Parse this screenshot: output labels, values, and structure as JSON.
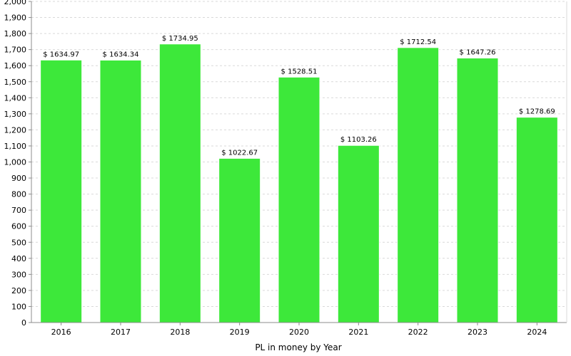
{
  "chart_data": {
    "type": "bar",
    "title": "",
    "xlabel": "PL in money by Year",
    "ylabel": "",
    "categories": [
      "2016",
      "2017",
      "2018",
      "2019",
      "2020",
      "2021",
      "2022",
      "2023",
      "2024"
    ],
    "values": [
      1634.97,
      1634.34,
      1734.95,
      1022.67,
      1528.51,
      1103.26,
      1712.54,
      1647.26,
      1278.69
    ],
    "data_labels": [
      "$ 1634.97",
      "$ 1634.34",
      "$ 1734.95",
      "$ 1022.67",
      "$ 1528.51",
      "$ 1103.26",
      "$ 1712.54",
      "$ 1647.26",
      "$ 1278.69"
    ],
    "ylim": [
      0,
      2000
    ],
    "y_ticks": [
      0,
      100,
      200,
      300,
      400,
      500,
      600,
      700,
      800,
      900,
      1000,
      1100,
      1200,
      1300,
      1400,
      1500,
      1600,
      1700,
      1800,
      1900,
      2000
    ],
    "y_tick_labels": [
      "0",
      "100",
      "200",
      "300",
      "400",
      "500",
      "600",
      "700",
      "800",
      "900",
      "1,000",
      "1,100",
      "1,200",
      "1,300",
      "1,400",
      "1,500",
      "1,600",
      "1,700",
      "1,800",
      "1,900",
      "2,000"
    ],
    "grid": true,
    "legend": "none",
    "colors": {
      "bar_fill": "#3de83a",
      "bar_stroke": "#ffffff",
      "grid": "#d9d9d9",
      "axis": "#8c8c8c",
      "text": "#000000"
    }
  }
}
